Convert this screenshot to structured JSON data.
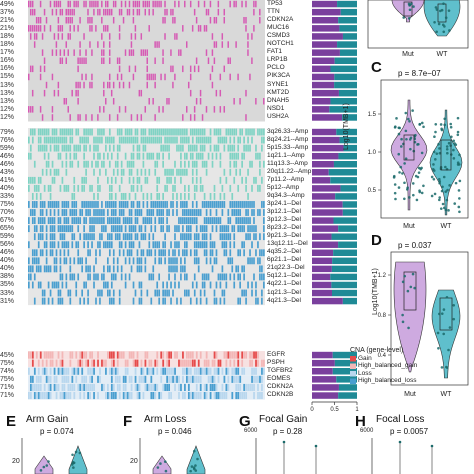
{
  "colors": {
    "mutation": "#d65ab4",
    "arm_amp": "#7fd3c4",
    "arm_del": "#4a9fd0",
    "gain": "#e64b4b",
    "high_gain": "#f3b7b7",
    "loss": "#b9d7ee",
    "high_loss": "#4a9fd0",
    "bg": "#d9d9d9",
    "bar_purple": "#7a3f9d",
    "bar_teal": "#1f8a96",
    "violin_purple": "#c9a1dd",
    "violin_teal": "#4eb8c7"
  },
  "oncoprint": {
    "mutation_rows": [
      {
        "pct": "49%",
        "label": "TP53",
        "freq": 0.49
      },
      {
        "pct": "37%",
        "label": "TTN",
        "freq": 0.37
      },
      {
        "pct": "21%",
        "label": "CDKN2A",
        "freq": 0.21
      },
      {
        "pct": "21%",
        "label": "MUC16",
        "freq": 0.21
      },
      {
        "pct": "18%",
        "label": "CSMD3",
        "freq": 0.18
      },
      {
        "pct": "18%",
        "label": "NOTCH1",
        "freq": 0.18
      },
      {
        "pct": "17%",
        "label": "FAT1",
        "freq": 0.17
      },
      {
        "pct": "16%",
        "label": "LRP1B",
        "freq": 0.16
      },
      {
        "pct": "16%",
        "label": "PCLO",
        "freq": 0.16
      },
      {
        "pct": "15%",
        "label": "PIK3CA",
        "freq": 0.15
      },
      {
        "pct": "13%",
        "label": "SYNE1",
        "freq": 0.13
      },
      {
        "pct": "13%",
        "label": "KMT2D",
        "freq": 0.13
      },
      {
        "pct": "13%",
        "label": "DNAH5",
        "freq": 0.13
      },
      {
        "pct": "12%",
        "label": "NSD1",
        "freq": 0.12
      },
      {
        "pct": "12%",
        "label": "USH2A",
        "freq": 0.12
      }
    ],
    "arm_rows": [
      {
        "pct": "79%",
        "label": "3q26.33--Amp",
        "freq": 0.79,
        "kind": "amp"
      },
      {
        "pct": "76%",
        "label": "8q24.21--Amp",
        "freq": 0.76,
        "kind": "amp"
      },
      {
        "pct": "59%",
        "label": "5p15.33--Amp",
        "freq": 0.59,
        "kind": "amp"
      },
      {
        "pct": "46%",
        "label": "1q21.1--Amp",
        "freq": 0.46,
        "kind": "amp"
      },
      {
        "pct": "46%",
        "label": "11q13.3--Amp",
        "freq": 0.46,
        "kind": "amp"
      },
      {
        "pct": "43%",
        "label": "20q11.22--Amp",
        "freq": 0.43,
        "kind": "amp"
      },
      {
        "pct": "41%",
        "label": "7p11.2--Amp",
        "freq": 0.41,
        "kind": "amp"
      },
      {
        "pct": "40%",
        "label": "5p12--Amp",
        "freq": 0.4,
        "kind": "amp"
      },
      {
        "pct": "33%",
        "label": "9q34.3--Amp",
        "freq": 0.33,
        "kind": "amp"
      },
      {
        "pct": "75%",
        "label": "3p24.1--Del",
        "freq": 0.75,
        "kind": "del"
      },
      {
        "pct": "70%",
        "label": "3p12.1--Del",
        "freq": 0.7,
        "kind": "del"
      },
      {
        "pct": "67%",
        "label": "3p12.3--Del",
        "freq": 0.67,
        "kind": "del"
      },
      {
        "pct": "65%",
        "label": "8p23.2--Del",
        "freq": 0.65,
        "kind": "del"
      },
      {
        "pct": "59%",
        "label": "9p21.3--Del",
        "freq": 0.59,
        "kind": "del"
      },
      {
        "pct": "56%",
        "label": "13q12.11--Del",
        "freq": 0.56,
        "kind": "del"
      },
      {
        "pct": "46%",
        "label": "4q35.2--Del",
        "freq": 0.46,
        "kind": "del"
      },
      {
        "pct": "40%",
        "label": "6p21.1--Del",
        "freq": 0.4,
        "kind": "del"
      },
      {
        "pct": "40%",
        "label": "21q22.3--Del",
        "freq": 0.4,
        "kind": "del"
      },
      {
        "pct": "38%",
        "label": "5q12.1--Del",
        "freq": 0.38,
        "kind": "del"
      },
      {
        "pct": "35%",
        "label": "4q22.1--Del",
        "freq": 0.35,
        "kind": "del"
      },
      {
        "pct": "33%",
        "label": "1q21.3--Del",
        "freq": 0.33,
        "kind": "del"
      },
      {
        "pct": "31%",
        "label": "4q21.3--Del",
        "freq": 0.31,
        "kind": "del"
      }
    ],
    "cna_rows": [
      {
        "pct": "45%",
        "label": "EGFR",
        "kind": "gain"
      },
      {
        "pct": "75%",
        "label": "PSPH",
        "kind": "gain"
      },
      {
        "pct": "74%",
        "label": "TGFBR2",
        "kind": "loss"
      },
      {
        "pct": "75%",
        "label": "EOMES",
        "kind": "loss"
      },
      {
        "pct": "71%",
        "label": "CDKN2A",
        "kind": "loss"
      },
      {
        "pct": "71%",
        "label": "CDKN2B",
        "kind": "loss"
      }
    ],
    "side_bar_axis": [
      "0",
      "0.5",
      "1"
    ]
  },
  "cna_legend": {
    "title": "CNA (gene-level)",
    "items": [
      {
        "label": "Gain",
        "color": "#e64b4b"
      },
      {
        "label": "High_balanced_gain",
        "color": "#f3b7b7"
      },
      {
        "label": "Loss",
        "color": "#b9d7ee"
      },
      {
        "label": "High_balanced_loss",
        "color": "#4a9fd0"
      }
    ]
  },
  "panels": {
    "C": {
      "letter": "C",
      "p": "p = 8.7e−07",
      "ylabel": "Log10(TMB+1)",
      "yticks": [
        "0.5",
        "1.0",
        "1.5"
      ],
      "groups": [
        "Mut",
        "WT"
      ]
    },
    "D": {
      "letter": "D",
      "p": "p = 0.037",
      "ylabel": "Log10(TMB+1)",
      "yticks": [
        "0.4",
        "0.8",
        "1.2"
      ],
      "groups": [
        "Mut",
        "WT"
      ]
    },
    "B": {
      "groups": [
        "Mut",
        "WT"
      ]
    },
    "E": {
      "letter": "E",
      "title": "Arm Gain",
      "p": "p = 0.074",
      "ytick": "20"
    },
    "F": {
      "letter": "F",
      "title": "Arm Loss",
      "p": "p = 0.046",
      "ytick": "20"
    },
    "G": {
      "letter": "G",
      "title": "Focal Gain",
      "p": "p = 0.28",
      "ytick": "6000"
    },
    "H": {
      "letter": "H",
      "title": "Focal Loss",
      "p": "p = 0.0057",
      "ytick": "6000"
    }
  },
  "chart_data": [
    {
      "type": "heatmap",
      "title": "",
      "row_labels": [
        "TP53",
        "TTN",
        "CDKN2A",
        "MUC16",
        "CSMD3",
        "NOTCH1",
        "FAT1",
        "LRP1B",
        "PCLO",
        "PIK3CA",
        "SYNE1",
        "KMT2D",
        "DNAH5",
        "NSD1",
        "USH2A"
      ],
      "values": [
        49,
        37,
        21,
        21,
        18,
        18,
        17,
        16,
        16,
        15,
        13,
        13,
        13,
        12,
        12
      ],
      "unit": "%"
    },
    {
      "type": "scatter",
      "title": "",
      "groups": [
        "Mut",
        "WT"
      ],
      "p_value": "8.7e-07",
      "ylabel": "Log10(TMB+1)",
      "ylim": [
        0,
        1.8
      ]
    },
    {
      "type": "scatter",
      "title": "",
      "groups": [
        "Mut",
        "WT"
      ],
      "p_value": "0.037",
      "ylabel": "Log10(TMB+1)",
      "ylim": [
        0.2,
        1.3
      ]
    }
  ]
}
